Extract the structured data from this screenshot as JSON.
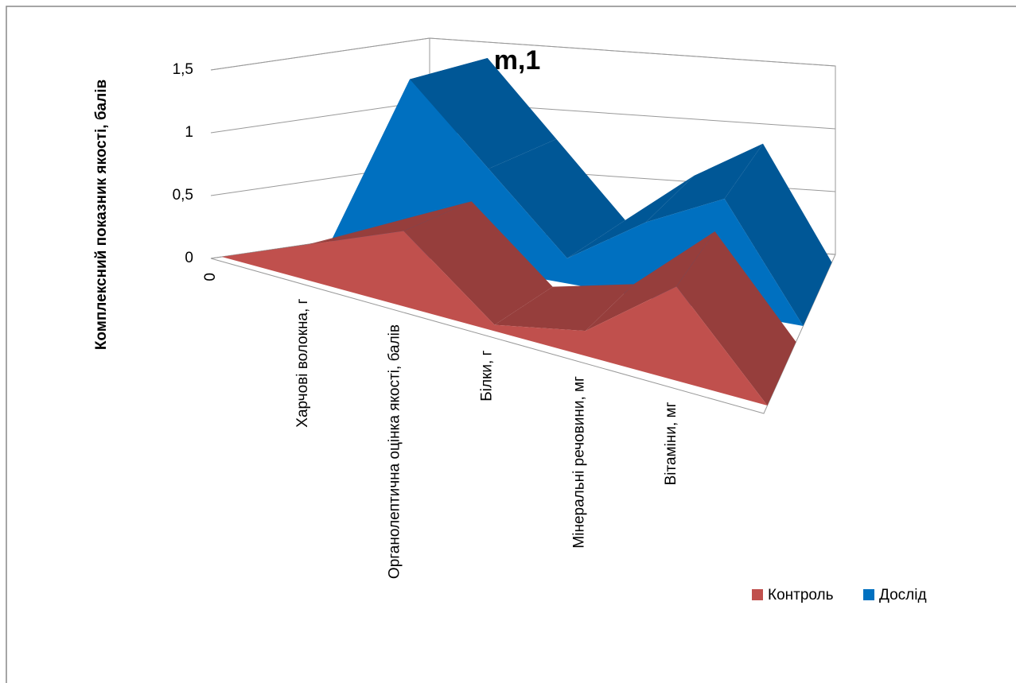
{
  "chart_data": {
    "type": "area3d",
    "title": "m,1",
    "y_label": "Комплексний показник якості, балів",
    "categories": [
      "0",
      "Харчові волокна, г",
      "Органолептична оцінка якості, балів",
      "Білки, г",
      "Мінеральні речовини, мг",
      "Вітаміни, мг",
      null
    ],
    "series": [
      {
        "name": "Контроль",
        "color": "#c0504d",
        "values": [
          0,
          0.3,
          0.6,
          0.05,
          0.2,
          0.75,
          0
        ]
      },
      {
        "name": "Дослід",
        "color": "#0070c0",
        "values": [
          0,
          1.4,
          0.8,
          0.2,
          0.6,
          0.9,
          0
        ]
      }
    ],
    "ylim": [
      0,
      1.5
    ],
    "yticks": [
      0,
      {
        "value": 0.5,
        "label": "0,5"
      },
      1,
      {
        "value": 1.5,
        "label": "1,5"
      }
    ],
    "grid": true,
    "legend": "bottom-right"
  }
}
